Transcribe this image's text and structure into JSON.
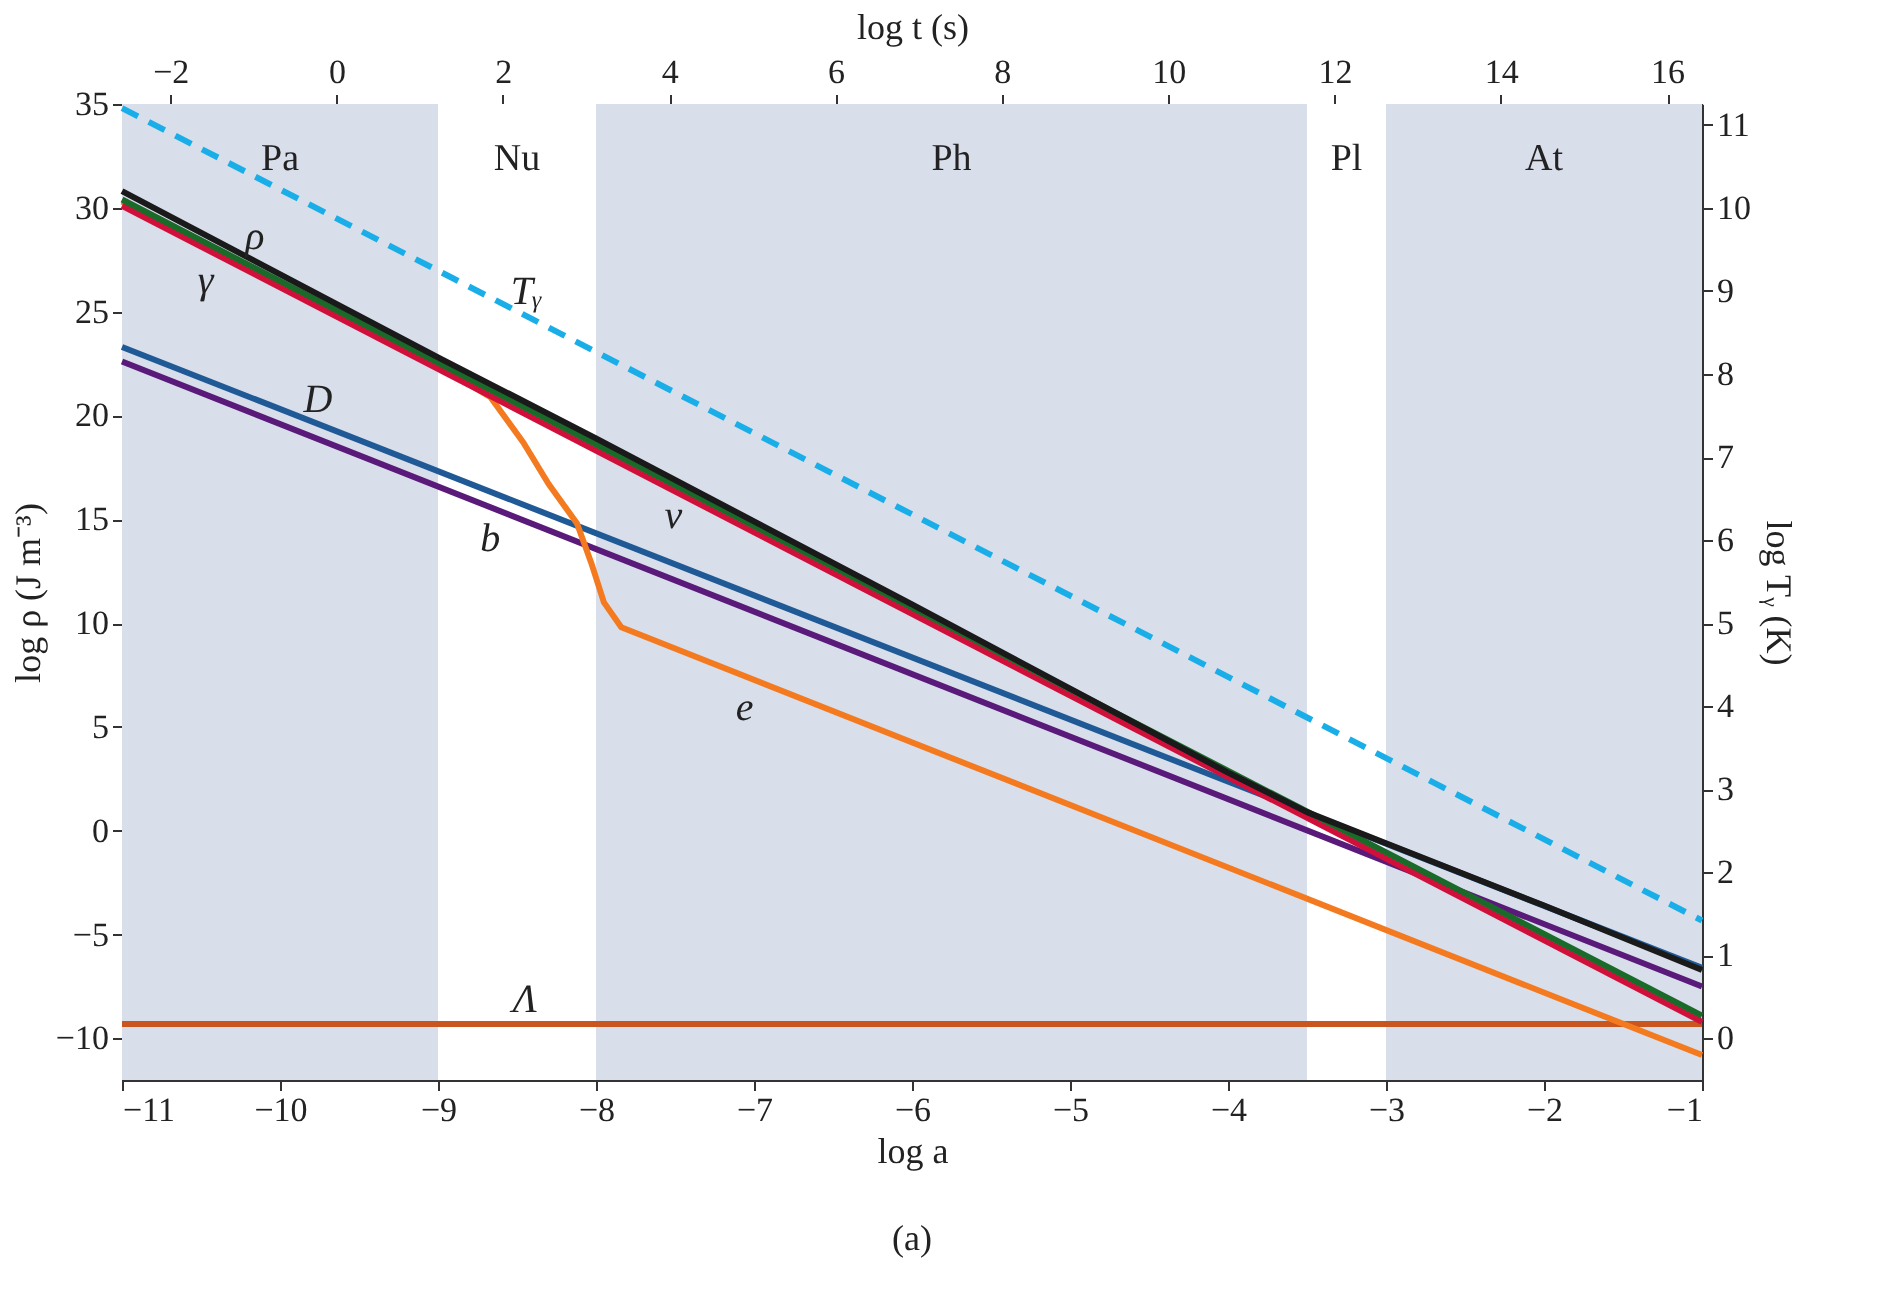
{
  "chart_data": {
    "type": "line",
    "xlabel": "log a",
    "ylabel": "log ρ (J m⁻³)",
    "y2label": "log Tᵧ (K)",
    "x2label": "log t (s)",
    "xlim": [
      -11,
      -1
    ],
    "xticks": [
      -11,
      -10,
      -9,
      -8,
      -7,
      -6,
      -5,
      -4,
      -3,
      -2,
      -1
    ],
    "ylim": [
      -12,
      35
    ],
    "yticks": [
      -10,
      -5,
      0,
      5,
      10,
      15,
      20,
      25,
      30,
      35
    ],
    "y2lim": [
      -0.5,
      11.25
    ],
    "y2ticks": [
      0,
      1,
      2,
      3,
      4,
      5,
      6,
      7,
      8,
      9,
      10,
      11
    ],
    "x2lim": [
      -2.58,
      16.42
    ],
    "x2ticks": [
      -2,
      0,
      2,
      4,
      6,
      8,
      10,
      12,
      14,
      16
    ],
    "bands": [
      {
        "axis": "x",
        "from": -11,
        "to": -9,
        "label": "Pa",
        "color": "#d9deeb"
      },
      {
        "axis": "x",
        "from": -9,
        "to": -8,
        "label": "Nu",
        "color": "#ffffff"
      },
      {
        "axis": "x",
        "from": -8,
        "to": -3.5,
        "label": "Ph",
        "color": "#d9deeb"
      },
      {
        "axis": "x",
        "from": -3.5,
        "to": -3,
        "label": "Pl",
        "color": "#ffffff"
      },
      {
        "axis": "x",
        "from": -3,
        "to": -1,
        "label": "At",
        "color": "#d9deeb"
      }
    ],
    "series": [
      {
        "color": "#c8561e",
        "line_style": "solid",
        "x": [
          -11,
          -1
        ],
        "values": [
          -9.3,
          -9.3
        ]
      },
      {
        "color": "#5a1a7a",
        "line_style": "solid",
        "x": [
          -11,
          -1
        ],
        "values": [
          22.6,
          -7.5
        ]
      },
      {
        "color": "#1f5a96",
        "line_style": "solid",
        "x": [
          -11,
          -1
        ],
        "values": [
          23.3,
          -6.6
        ]
      },
      {
        "color": "#f47a20",
        "line_style": "solid",
        "x": [
          -11,
          -10,
          -9,
          -8.67,
          -8.46,
          -8.3,
          -8.12,
          -8.03,
          -7.95,
          -7.84,
          -1
        ],
        "values": [
          30.3,
          26.3,
          22.4,
          20.9,
          18.7,
          16.7,
          14.8,
          12.9,
          11.0,
          9.8,
          -10.8
        ]
      },
      {
        "color": "#d0103a",
        "line_style": "solid",
        "x": [
          -11,
          -1
        ],
        "values": [
          30.1,
          -9.2
        ]
      },
      {
        "color": "#1a6a2a",
        "line_style": "solid",
        "x": [
          -11,
          -1
        ],
        "values": [
          30.4,
          -8.9
        ]
      },
      {
        "color": "#1a1a1a",
        "line_style": "solid",
        "x": [
          -11,
          -9,
          -8,
          -6,
          -4,
          -3.5,
          -3,
          -2,
          -1
        ],
        "values": [
          30.8,
          22.8,
          18.9,
          10.9,
          2.8,
          0.9,
          -0.6,
          -3.6,
          -6.7
        ]
      },
      {
        "color": "#19aee8",
        "axis": "y2",
        "line_style": "dashed",
        "x": [
          -11,
          -1
        ],
        "values": [
          11.2,
          1.42
        ]
      }
    ],
    "annotations": [
      {
        "text": "ρ",
        "x": -10.16,
        "y": 27.44
      },
      {
        "text": "γ",
        "x": -10.47,
        "y": 28.02
      },
      {
        "text": "Tᵧ",
        "x": -8.44,
        "y": 24.8
      },
      {
        "text": "D",
        "x": -9.76,
        "y": 19.59
      },
      {
        "text": "b",
        "x": -8.67,
        "y": 15.59
      },
      {
        "text": "ν",
        "x": -7.51,
        "y": 16.68
      },
      {
        "text": "e",
        "x": -7.06,
        "y": 7.45
      },
      {
        "text": "Λ",
        "x": -8.45,
        "y": -9.3
      },
      "(a)"
    ]
  }
}
